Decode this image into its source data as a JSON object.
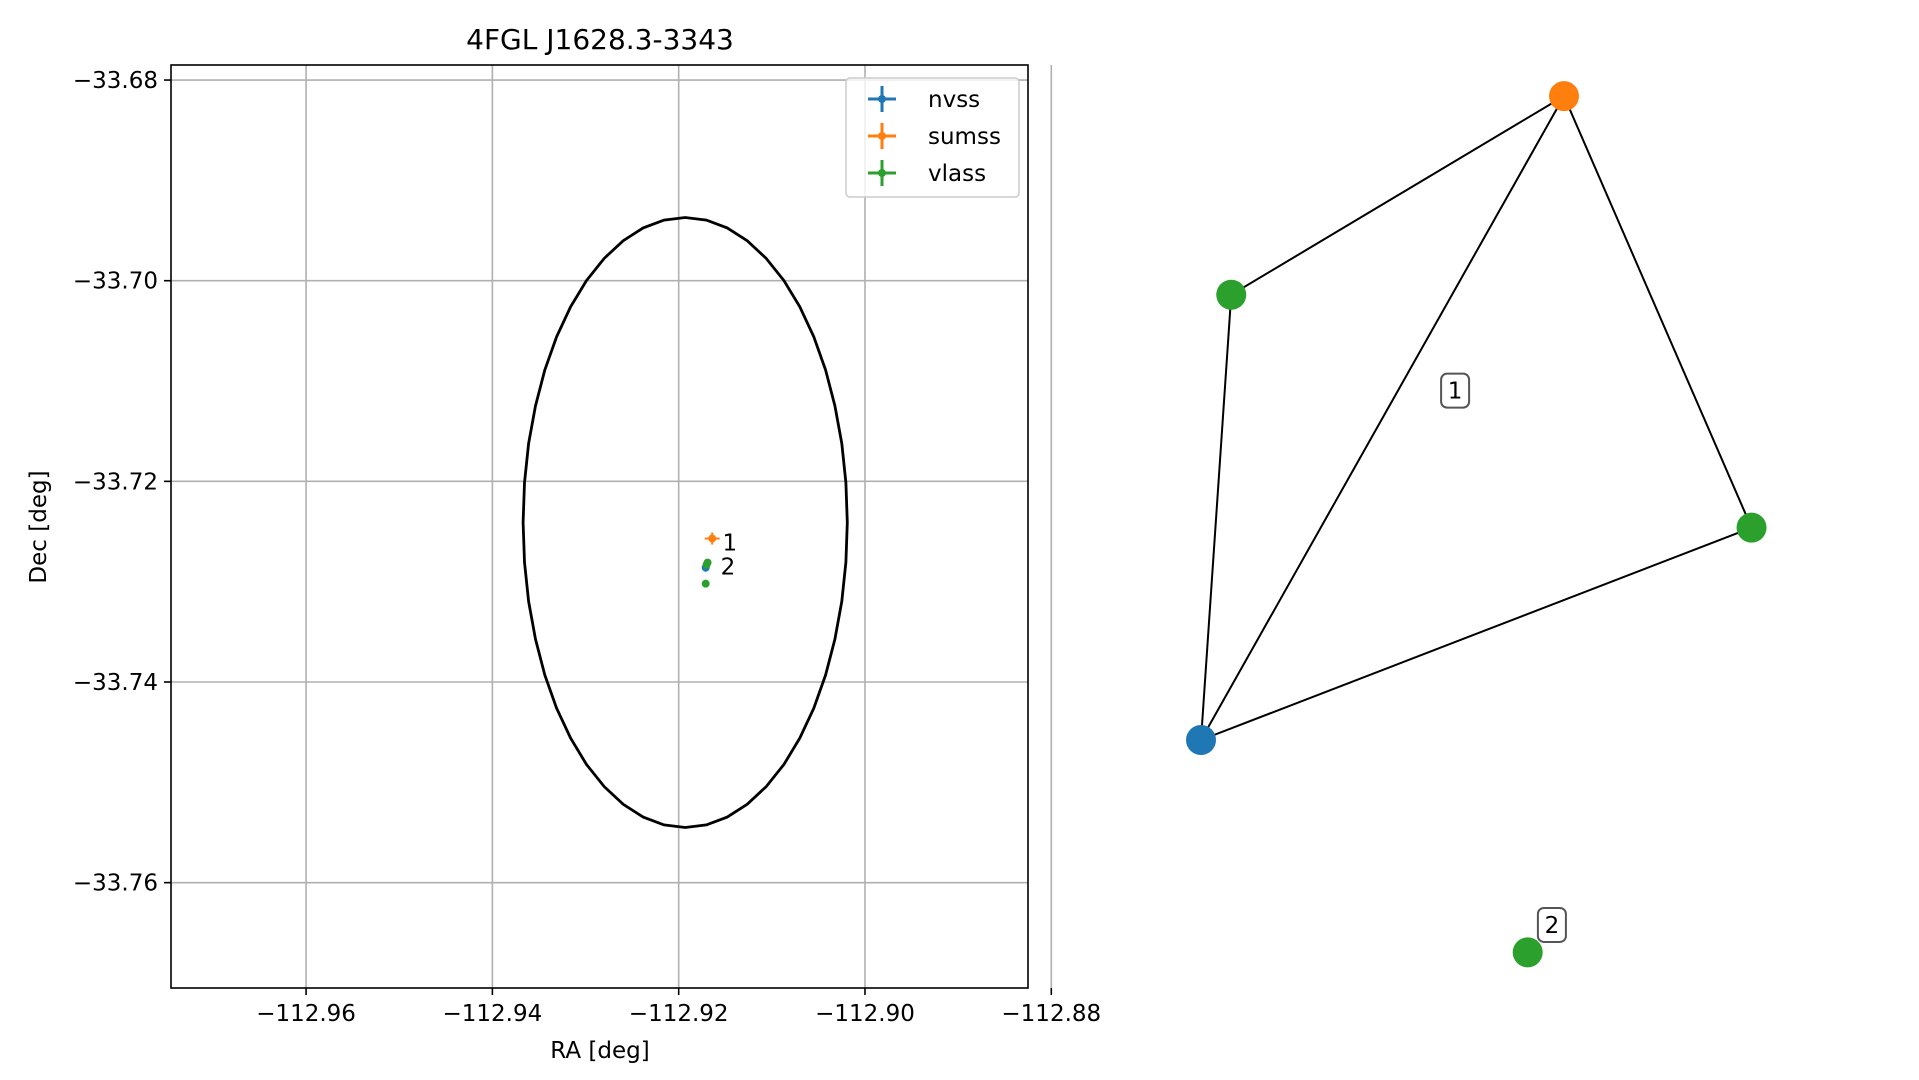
{
  "chart_data": [
    {
      "type": "scatter",
      "title": "4FGL J1628.3-3343",
      "xlabel": "RA [deg]",
      "ylabel": "Dec [deg]",
      "xlim": [
        -112.9745,
        -112.8825
      ],
      "ylim": [
        -33.7705,
        -33.6785
      ],
      "xticks": [
        -112.96,
        -112.94,
        -112.92,
        -112.9,
        -112.88
      ],
      "xtick_labels": [
        "−112.96",
        "−112.94",
        "−112.92",
        "−112.90",
        "−112.88"
      ],
      "yticks": [
        -33.68,
        -33.7,
        -33.72,
        -33.74,
        -33.76
      ],
      "ytick_labels": [
        "−33.68",
        "−33.70",
        "−33.72",
        "−33.74",
        "−33.76"
      ],
      "grid": true,
      "legend_position": "top-right",
      "ellipse": {
        "center_ra": -112.9193,
        "center_dec": -33.7241,
        "semi_axis_ra": 0.0174,
        "semi_axis_dec": 0.0304,
        "color": "#000000"
      },
      "series": [
        {
          "name": "nvss",
          "color": "#1f77b4",
          "points": [
            {
              "ra": -112.9171,
              "dec": -33.7286,
              "ra_err": 0.0003,
              "dec_err": 0.0004
            }
          ]
        },
        {
          "name": "sumss",
          "color": "#ff7f0e",
          "points": [
            {
              "ra": -112.9164,
              "dec": -33.7257,
              "ra_err": 0.0008,
              "dec_err": 0.0006
            }
          ]
        },
        {
          "name": "vlass",
          "color": "#2ca02c",
          "points": [
            {
              "ra": -112.917,
              "dec": -33.7283,
              "ra_err": 0.0002,
              "dec_err": 0.0002
            },
            {
              "ra": -112.9169,
              "dec": -33.7281,
              "ra_err": 0.0002,
              "dec_err": 0.0002
            },
            {
              "ra": -112.9171,
              "dec": -33.7302,
              "ra_err": 0.0002,
              "dec_err": 0.0002
            }
          ]
        }
      ],
      "annotations": [
        {
          "text": "1",
          "ra": -112.9153,
          "dec": -33.7261
        },
        {
          "text": "2",
          "ra": -112.9155,
          "dec": -33.7285
        }
      ]
    },
    {
      "type": "network",
      "nodes": [
        {
          "id": "nvss",
          "color": "#1f77b4",
          "x": 0.0,
          "y": 0.0
        },
        {
          "id": "sumss",
          "color": "#ff7f0e",
          "x": 0.6,
          "y": 0.94
        },
        {
          "id": "vlass_a",
          "color": "#2ca02c",
          "x": 0.05,
          "y": 0.65
        },
        {
          "id": "vlass_b",
          "color": "#2ca02c",
          "x": 0.91,
          "y": 0.31
        },
        {
          "id": "vlass_c",
          "color": "#2ca02c",
          "x": 0.54,
          "y": -0.31
        }
      ],
      "edges": [
        [
          "nvss",
          "sumss"
        ],
        [
          "nvss",
          "vlass_a"
        ],
        [
          "nvss",
          "vlass_b"
        ],
        [
          "sumss",
          "vlass_a"
        ],
        [
          "sumss",
          "vlass_b"
        ]
      ],
      "group_labels": [
        {
          "text": "1",
          "x": 0.42,
          "y": 0.51
        },
        {
          "text": "2",
          "x": 0.58,
          "y": -0.27
        }
      ]
    }
  ]
}
